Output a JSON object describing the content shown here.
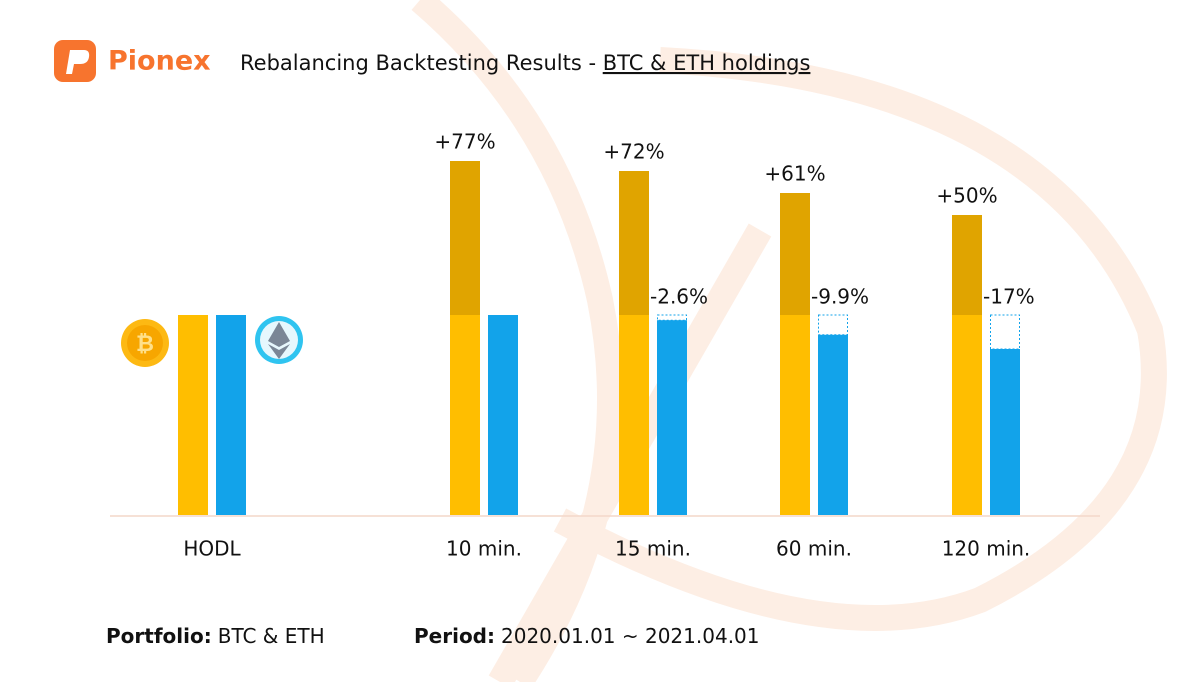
{
  "brand": "Pionex",
  "chart_data": {
    "type": "bar",
    "title": "Rebalancing Backtesting Results - ",
    "title_link": "BTC & ETH holdings",
    "categories": [
      "HODL",
      "10 min.",
      "15 min.",
      "60 min.",
      "120 min."
    ],
    "ylim": [
      -100,
      80
    ],
    "series": [
      {
        "name": "BTC",
        "color": "#FFBE00",
        "gain_color": "#E0A400",
        "values": [
          0,
          77,
          72,
          61,
          50
        ],
        "value_labels": [
          null,
          "+77%",
          "+72%",
          "+61%",
          "+50%"
        ]
      },
      {
        "name": "ETH",
        "color": "#12A3EA",
        "values": [
          0,
          0,
          -2.6,
          -9.9,
          -17
        ],
        "value_labels": [
          null,
          null,
          "-2.6%",
          "-9.9%",
          "-17%"
        ]
      }
    ]
  },
  "footer": {
    "portfolio_label": "Portfolio:",
    "portfolio": "BTC & ETH",
    "period_label": "Period:",
    "period": "2020.01.01 ~ 2021.04.01"
  }
}
